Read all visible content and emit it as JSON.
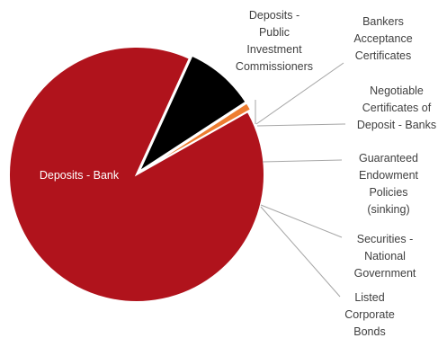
{
  "chart_data": {
    "type": "pie",
    "title": "",
    "start_angle_deg": 65.5,
    "slices": [
      {
        "label": "Deposits - Public Investment Commissioners",
        "value": 0.0,
        "color": "#7f7f7f"
      },
      {
        "label": "Bankers Acceptance Certificates",
        "value": 0.0,
        "color": "#7f7f7f"
      },
      {
        "label": "Negotiable Certificates of Deposit - Banks",
        "value": 0.0,
        "color": "#7f7f7f"
      },
      {
        "label": "Guaranteed Endowment Policies (sinking)",
        "value": 9.0,
        "color": "#000000"
      },
      {
        "label": "Securities - National Government",
        "value": 1.0,
        "color": "#ed7d31"
      },
      {
        "label": "Listed Corporate Bonds",
        "value": 0.0,
        "color": "#7f7f7f"
      },
      {
        "label": "Deposits - Bank",
        "value": 90.0,
        "color": "#b0131c"
      }
    ],
    "labels_display": [
      {
        "lines": [
          "Deposits -",
          "Public",
          "Investment",
          "Commissioners"
        ]
      },
      {
        "lines": [
          "Bankers",
          "Acceptance",
          "Certificates"
        ]
      },
      {
        "lines": [
          "Negotiable",
          "Certificates of",
          "Deposit - Banks"
        ]
      },
      {
        "lines": [
          "Guaranteed",
          "Endowment",
          "Policies",
          "(sinking)"
        ]
      },
      {
        "lines": [
          "Securities -",
          "National",
          "Government"
        ]
      },
      {
        "lines": [
          "Listed",
          "Corporate",
          "Bonds"
        ]
      },
      {
        "lines": [
          "Deposits - Bank"
        ]
      }
    ],
    "legend": "none"
  }
}
